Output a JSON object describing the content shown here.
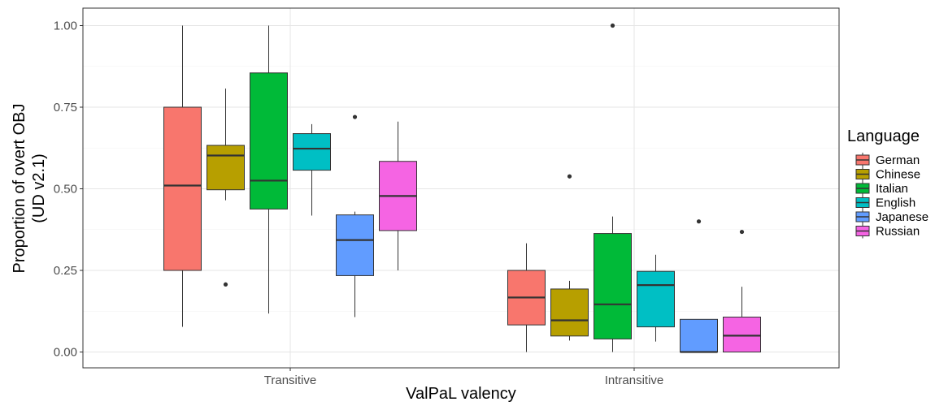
{
  "chart_data": {
    "type": "boxplot",
    "xlabel": "ValPaL valency",
    "ylabel_lines": [
      "Proportion of overt OBJ",
      "(UD v2.1)"
    ],
    "ylim": [
      -0.04,
      1.04
    ],
    "yticks": [
      0.0,
      0.25,
      0.5,
      0.75,
      1.0
    ],
    "ytick_labels": [
      "0.00",
      "0.25",
      "0.50",
      "0.75",
      "1.00"
    ],
    "categories": [
      "Transitive",
      "Intransitive"
    ],
    "grid": true,
    "legend": {
      "title": "Language",
      "placement": "right"
    },
    "series": [
      {
        "name": "German",
        "color": "#F8766D",
        "boxes": [
          {
            "min": 0.077,
            "q1": 0.25,
            "median": 0.51,
            "q3": 0.75,
            "max": 1.0,
            "outliers": []
          },
          {
            "min": 0.0,
            "q1": 0.083,
            "median": 0.167,
            "q3": 0.25,
            "max": 0.333,
            "outliers": []
          }
        ]
      },
      {
        "name": "Chinese",
        "color": "#B79F00",
        "boxes": [
          {
            "min": 0.465,
            "q1": 0.497,
            "median": 0.602,
            "q3": 0.633,
            "max": 0.807,
            "outliers": [
              0.207
            ]
          },
          {
            "min": 0.035,
            "q1": 0.049,
            "median": 0.097,
            "q3": 0.193,
            "max": 0.218,
            "outliers": [
              0.538
            ]
          }
        ]
      },
      {
        "name": "Italian",
        "color": "#00BA38",
        "boxes": [
          {
            "min": 0.118,
            "q1": 0.438,
            "median": 0.525,
            "q3": 0.855,
            "max": 1.0,
            "outliers": []
          },
          {
            "min": 0.0,
            "q1": 0.04,
            "median": 0.146,
            "q3": 0.363,
            "max": 0.415,
            "outliers": [
              1.0
            ]
          }
        ]
      },
      {
        "name": "English",
        "color": "#00BFC4",
        "boxes": [
          {
            "min": 0.418,
            "q1": 0.557,
            "median": 0.623,
            "q3": 0.669,
            "max": 0.698,
            "outliers": []
          },
          {
            "min": 0.032,
            "q1": 0.077,
            "median": 0.205,
            "q3": 0.247,
            "max": 0.298,
            "outliers": []
          }
        ]
      },
      {
        "name": "Japanese",
        "color": "#619CFF",
        "boxes": [
          {
            "min": 0.107,
            "q1": 0.234,
            "median": 0.343,
            "q3": 0.42,
            "max": 0.43,
            "outliers": [
              0.72
            ]
          },
          {
            "min": 0.0,
            "q1": 0.0,
            "median": 0.0,
            "q3": 0.1,
            "max": 0.1,
            "outliers": [
              0.4
            ]
          }
        ]
      },
      {
        "name": "Russian",
        "color": "#F564E3",
        "boxes": [
          {
            "min": 0.25,
            "q1": 0.372,
            "median": 0.478,
            "q3": 0.584,
            "max": 0.706,
            "outliers": []
          },
          {
            "min": 0.0,
            "q1": 0.0,
            "median": 0.05,
            "q3": 0.107,
            "max": 0.2,
            "outliers": [
              0.368
            ]
          }
        ]
      }
    ]
  }
}
